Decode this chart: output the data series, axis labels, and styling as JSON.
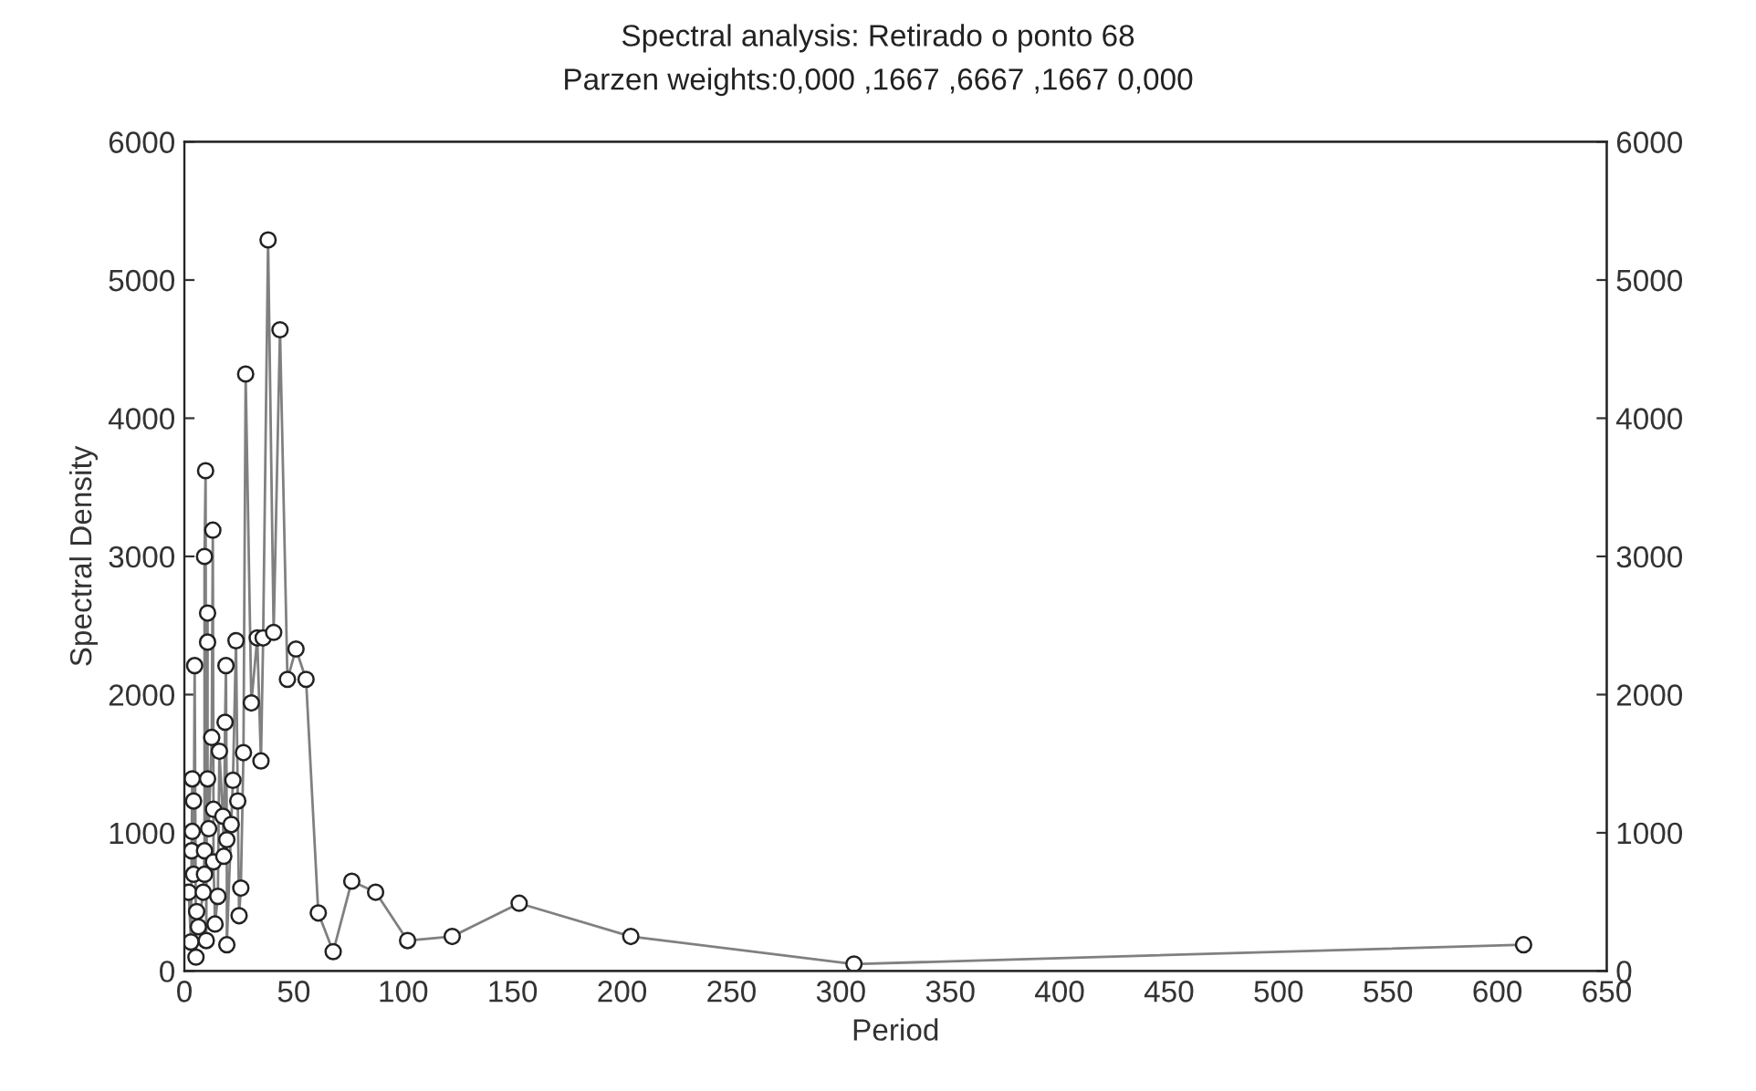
{
  "chart_data": {
    "type": "line",
    "title": "Spectral analysis: Retirado o ponto 68",
    "subtitle": "Parzen weights:0,000 ,1667 ,6667 ,1667 0,000",
    "xlabel": "Period",
    "ylabel": "Spectral Density",
    "x": [
      2.0,
      3.0,
      3.3,
      3.6,
      3.6,
      4.2,
      4.2,
      4.7,
      5.3,
      5.6,
      6.4,
      8.6,
      9.2,
      9.2,
      9.2,
      9.7,
      10.0,
      10.6,
      10.6,
      10.6,
      11.1,
      12.5,
      13.0,
      13.3,
      13.3,
      14.0,
      15.3,
      16.0,
      17.6,
      18.0,
      18.6,
      19.0,
      19.4,
      19.4,
      21.4,
      22.2,
      23.6,
      24.4,
      25.0,
      25.8,
      27.0,
      28.0,
      30.6,
      33.3,
      35.0,
      36.0,
      38.25,
      40.8,
      43.7,
      47.1,
      51.0,
      55.6,
      61.2,
      68.0,
      76.5,
      87.4,
      102.0,
      122.4,
      153.0,
      204.0,
      306.0,
      612.0
    ],
    "series": [
      {
        "color": "#808080",
        "values": [
          570,
          210,
          870,
          1390,
          1010,
          1230,
          700,
          2210,
          100,
          430,
          320,
          570,
          870,
          700,
          3000,
          3620,
          220,
          2590,
          2380,
          1390,
          1030,
          1690,
          3190,
          1170,
          790,
          340,
          540,
          1590,
          1120,
          830,
          1800,
          2210,
          950,
          190,
          1060,
          1380,
          2390,
          1230,
          400,
          600,
          1580,
          4320,
          1940,
          2410,
          1520,
          2410,
          5290,
          2450,
          4640,
          2110,
          2330,
          2110,
          420,
          140,
          650,
          570,
          220,
          250,
          490,
          250,
          50,
          190
        ]
      }
    ],
    "marker": "circle",
    "line_style": "solid",
    "grid": false,
    "xlim": [
      0,
      650
    ],
    "xticks": [
      0,
      50,
      100,
      150,
      200,
      250,
      300,
      350,
      400,
      450,
      500,
      550,
      600,
      650
    ],
    "ylim": [
      0,
      6000
    ],
    "yticks": [
      0,
      1000,
      2000,
      3000,
      4000,
      5000,
      6000
    ],
    "y2lim": [
      0,
      6000
    ],
    "y2ticks": [
      0,
      1000,
      2000,
      3000,
      4000,
      5000,
      6000
    ]
  }
}
